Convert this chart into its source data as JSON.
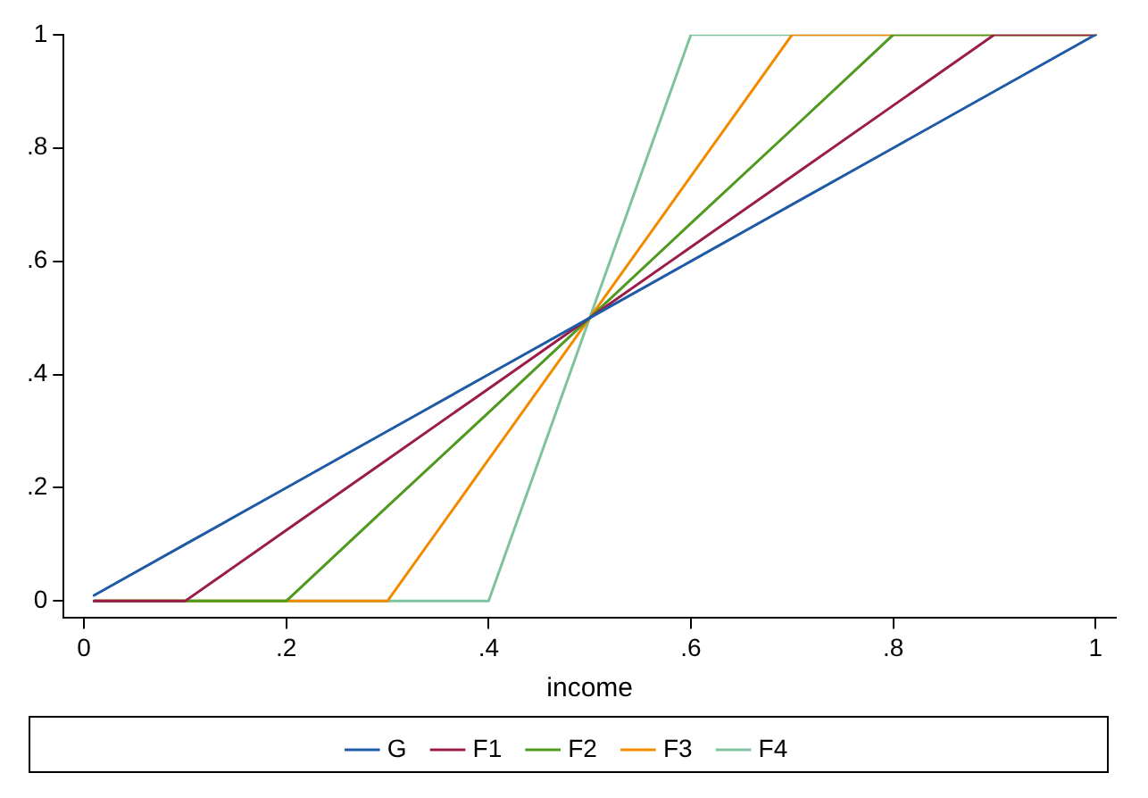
{
  "chart_data": {
    "type": "line",
    "xlabel": "income",
    "x": [
      0.01,
      0.1,
      0.2,
      0.3,
      0.4,
      0.5,
      0.6,
      0.7,
      0.8,
      0.9,
      1
    ],
    "series": [
      {
        "name": "G",
        "color": "#1f5aa6",
        "values": [
          0.01,
          0.1,
          0.2,
          0.3,
          0.4,
          0.5,
          0.6,
          0.7,
          0.8,
          0.9,
          1
        ]
      },
      {
        "name": "F1",
        "color": "#9b1c4a",
        "values": [
          0,
          0,
          0.125,
          0.25,
          0.375,
          0.5,
          0.625,
          0.75,
          0.875,
          1,
          1
        ]
      },
      {
        "name": "F2",
        "color": "#4f9a1e",
        "values": [
          0,
          0,
          0,
          0.167,
          0.333,
          0.5,
          0.667,
          0.833,
          1,
          1,
          1
        ]
      },
      {
        "name": "F3",
        "color": "#f28a00",
        "values": [
          0,
          0,
          0,
          0,
          0.25,
          0.5,
          0.75,
          1,
          1,
          1,
          1
        ]
      },
      {
        "name": "F4",
        "color": "#7fc29e",
        "values": [
          0,
          0,
          0,
          0,
          0,
          0.5,
          1,
          1,
          1,
          1,
          1
        ]
      }
    ],
    "xlim": [
      -0.02,
      1.02
    ],
    "ylim": [
      -0.03,
      1
    ],
    "xticks": [
      0,
      {
        "value": 0.2,
        "label": ".2"
      },
      {
        "value": 0.4,
        "label": ".4"
      },
      {
        "value": 0.6,
        "label": ".6"
      },
      {
        "value": 0.8,
        "label": ".8"
      },
      1
    ],
    "yticks": [
      0,
      {
        "value": 0.2,
        "label": ".2"
      },
      {
        "value": 0.4,
        "label": ".4"
      },
      {
        "value": 0.6,
        "label": ".6"
      },
      {
        "value": 0.8,
        "label": ".8"
      },
      1
    ],
    "grid": false,
    "legend": "bottom",
    "marker": "none",
    "line_style": "solid"
  }
}
